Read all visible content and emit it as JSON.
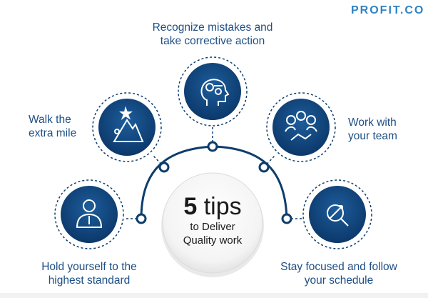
{
  "brand": {
    "logo_text": "PROFIT.CO"
  },
  "center": {
    "number": "5",
    "word": "tips",
    "line2": "to Deliver",
    "line3": "Quality work"
  },
  "tips": [
    {
      "line1": "Hold yourself to the",
      "line2": "highest standard",
      "icon": "person-badge-icon"
    },
    {
      "line1": "Walk the",
      "line2": "extra mile",
      "icon": "mountain-star-icon"
    },
    {
      "line1": "Recognize mistakes and",
      "line2": "take corrective action",
      "icon": "head-gears-icon"
    },
    {
      "line1": "Work with",
      "line2": "your team",
      "icon": "team-handshake-icon"
    },
    {
      "line1": "Stay focused and follow",
      "line2": "your schedule",
      "icon": "magnifier-target-icon"
    }
  ],
  "colors": {
    "navy": "#0f3f73",
    "ring": "#0d3d6c",
    "label": "#1d4f86",
    "logo": "#2e83c4"
  }
}
